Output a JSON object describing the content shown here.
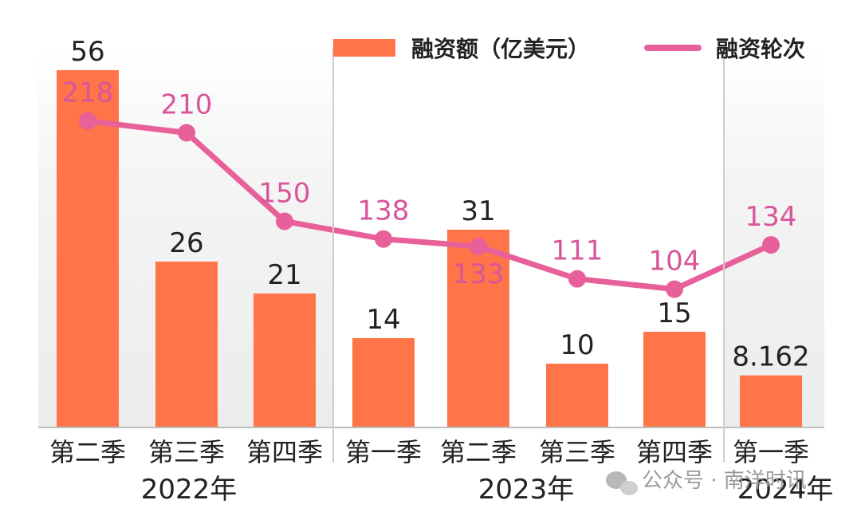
{
  "chart_data": {
    "type": "bar",
    "categories": [
      "第二季",
      "第三季",
      "第四季",
      "第一季",
      "第二季",
      "第三季",
      "第四季",
      "第一季"
    ],
    "year_groups": [
      {
        "label": "2022年",
        "start": 0,
        "end": 2
      },
      {
        "label": "2023年",
        "start": 3,
        "end": 6
      },
      {
        "label": "2024年",
        "start": 7,
        "end": 7
      }
    ],
    "series": [
      {
        "name": "融资额（亿美元）",
        "type": "bar",
        "values": [
          56,
          26,
          21,
          14,
          31,
          10,
          15,
          8.162
        ],
        "labels": [
          "56",
          "26",
          "21",
          "14",
          "31",
          "10",
          "15",
          "8.162"
        ]
      },
      {
        "name": "融资轮次",
        "type": "line",
        "values": [
          218,
          210,
          150,
          138,
          133,
          111,
          104,
          134
        ],
        "labels": [
          "218",
          "210",
          "150",
          "138",
          "133",
          "111",
          "104",
          "134"
        ]
      }
    ],
    "legend": "top-right",
    "grid": false,
    "colors": {
      "bar": "#ff7448",
      "line": "#e8609a",
      "line_label": "#d9559a",
      "background_band": "#f1f1f1"
    }
  },
  "watermark": {
    "text": "公众号 · 南洋时讯",
    "icon": "wechat-icon"
  }
}
